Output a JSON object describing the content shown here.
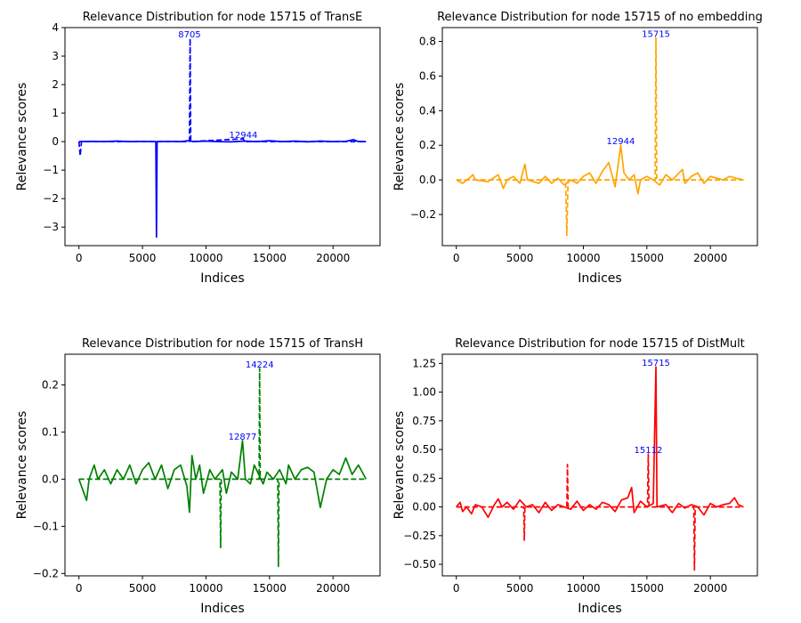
{
  "chart_data": [
    {
      "type": "line",
      "title": "Relevance Distribution for node  15715 of TransE",
      "xlabel": "Indices",
      "ylabel": "Relevance scores",
      "xlim": [
        -1100,
        23700
      ],
      "ylim": [
        -3.65,
        4.0
      ],
      "xticks": [
        0,
        5000,
        10000,
        15000,
        20000
      ],
      "yticks": [
        -3,
        -2,
        -1,
        0,
        1,
        2,
        3,
        4
      ],
      "ytick_labels": [
        "−3",
        "−2",
        "−1",
        "0",
        "1",
        "2",
        "3",
        "4"
      ],
      "color": "#0000ff",
      "series": [
        {
          "style": "solid",
          "points": [
            [
              0,
              0
            ],
            [
              1000,
              0.01
            ],
            [
              2000,
              0
            ],
            [
              3000,
              0.02
            ],
            [
              4000,
              0
            ],
            [
              5000,
              0.01
            ],
            [
              6050,
              0
            ],
            [
              6100,
              -3.35
            ],
            [
              6150,
              0
            ],
            [
              7000,
              0.01
            ],
            [
              8000,
              0
            ],
            [
              8600,
              0.03
            ],
            [
              9000,
              0
            ],
            [
              10000,
              0.02
            ],
            [
              11000,
              0
            ],
            [
              12000,
              -0.01
            ],
            [
              13000,
              0.02
            ],
            [
              14000,
              0
            ],
            [
              15000,
              0.03
            ],
            [
              16000,
              0
            ],
            [
              17000,
              0.02
            ],
            [
              18000,
              -0.01
            ],
            [
              19000,
              0.02
            ],
            [
              20000,
              0
            ],
            [
              21000,
              0.01
            ],
            [
              21600,
              0.07
            ],
            [
              22000,
              0
            ],
            [
              22600,
              0
            ]
          ]
        },
        {
          "style": "dashed",
          "points": [
            [
              0,
              0
            ],
            [
              100,
              -0.5
            ],
            [
              200,
              0
            ],
            [
              2000,
              0
            ],
            [
              8700,
              0
            ],
            [
              8750,
              3.62
            ],
            [
              8800,
              0
            ],
            [
              12944,
              0.1
            ],
            [
              13000,
              0
            ],
            [
              22600,
              0
            ]
          ]
        }
      ],
      "annotations": [
        {
          "text": "8705",
          "x": 8705,
          "y": 3.62
        },
        {
          "text": "12944",
          "x": 12944,
          "y": 0.1
        }
      ]
    },
    {
      "type": "line",
      "title": "Relevance Distribution for node  15715 of no embedding",
      "xlabel": "Indices",
      "ylabel": "Relevance scores",
      "xlim": [
        -1100,
        23700
      ],
      "ylim": [
        -0.38,
        0.88
      ],
      "xticks": [
        0,
        5000,
        10000,
        15000,
        20000
      ],
      "yticks": [
        -0.2,
        0.0,
        0.2,
        0.4,
        0.6,
        0.8
      ],
      "ytick_labels": [
        "−0.2",
        "0.0",
        "0.2",
        "0.4",
        "0.6",
        "0.8"
      ],
      "color": "#ffa500",
      "series": [
        {
          "style": "solid",
          "points": [
            [
              0,
              0
            ],
            [
              500,
              -0.02
            ],
            [
              1000,
              0.01
            ],
            [
              1300,
              0.03
            ],
            [
              1500,
              0
            ],
            [
              2500,
              -0.01
            ],
            [
              3300,
              0.03
            ],
            [
              3700,
              -0.05
            ],
            [
              4000,
              0
            ],
            [
              4500,
              0.02
            ],
            [
              5000,
              -0.02
            ],
            [
              5400,
              0.09
            ],
            [
              5600,
              0
            ],
            [
              6500,
              -0.02
            ],
            [
              7000,
              0.02
            ],
            [
              7500,
              -0.02
            ],
            [
              8000,
              0.01
            ],
            [
              8500,
              -0.03
            ],
            [
              9000,
              0
            ],
            [
              9500,
              -0.02
            ],
            [
              10000,
              0.02
            ],
            [
              10500,
              0.04
            ],
            [
              11000,
              -0.02
            ],
            [
              11500,
              0.05
            ],
            [
              12000,
              0.1
            ],
            [
              12500,
              -0.04
            ],
            [
              12944,
              0.2
            ],
            [
              13200,
              0.04
            ],
            [
              13600,
              0
            ],
            [
              14000,
              0.03
            ],
            [
              14300,
              -0.08
            ],
            [
              14500,
              0
            ],
            [
              15000,
              0.02
            ],
            [
              15500,
              0
            ],
            [
              16000,
              -0.03
            ],
            [
              16500,
              0.03
            ],
            [
              17000,
              0
            ],
            [
              17800,
              0.06
            ],
            [
              18000,
              -0.02
            ],
            [
              18500,
              0.02
            ],
            [
              19000,
              0.04
            ],
            [
              19500,
              -0.02
            ],
            [
              20000,
              0.02
            ],
            [
              20500,
              0.01
            ],
            [
              21000,
              0
            ],
            [
              21500,
              0.02
            ],
            [
              22000,
              0.01
            ],
            [
              22600,
              0
            ]
          ]
        },
        {
          "style": "dashed",
          "points": [
            [
              0,
              0
            ],
            [
              8600,
              0
            ],
            [
              8700,
              -0.32
            ],
            [
              8800,
              0
            ],
            [
              15650,
              0
            ],
            [
              15715,
              0.82
            ],
            [
              15780,
              0
            ],
            [
              22600,
              0
            ]
          ]
        }
      ],
      "annotations": [
        {
          "text": "15715",
          "x": 15715,
          "y": 0.82
        },
        {
          "text": "12944",
          "x": 12944,
          "y": 0.2
        }
      ]
    },
    {
      "type": "line",
      "title": "Relevance Distribution for node  15715 of TransH",
      "xlabel": "Indices",
      "ylabel": "Relevance scores",
      "xlim": [
        -1100,
        23700
      ],
      "ylim": [
        -0.205,
        0.265
      ],
      "xticks": [
        0,
        5000,
        10000,
        15000,
        20000
      ],
      "yticks": [
        -0.2,
        -0.1,
        0.0,
        0.1,
        0.2
      ],
      "ytick_labels": [
        "−0.2",
        "−0.1",
        "0.0",
        "0.1",
        "0.2"
      ],
      "color": "#008000",
      "series": [
        {
          "style": "solid",
          "points": [
            [
              0,
              0
            ],
            [
              400,
              -0.03
            ],
            [
              600,
              -0.045
            ],
            [
              800,
              0
            ],
            [
              1200,
              0.03
            ],
            [
              1500,
              0
            ],
            [
              2000,
              0.02
            ],
            [
              2500,
              -0.01
            ],
            [
              3000,
              0.02
            ],
            [
              3500,
              0
            ],
            [
              4000,
              0.03
            ],
            [
              4500,
              -0.01
            ],
            [
              5000,
              0.02
            ],
            [
              5500,
              0.035
            ],
            [
              6000,
              0
            ],
            [
              6500,
              0.03
            ],
            [
              7000,
              -0.02
            ],
            [
              7500,
              0.02
            ],
            [
              8000,
              0.03
            ],
            [
              8500,
              -0.015
            ],
            [
              8700,
              -0.07
            ],
            [
              8900,
              0.05
            ],
            [
              9200,
              0
            ],
            [
              9500,
              0.03
            ],
            [
              9800,
              -0.03
            ],
            [
              10300,
              0.02
            ],
            [
              10700,
              0
            ],
            [
              11300,
              0.02
            ],
            [
              11600,
              -0.03
            ],
            [
              12000,
              0.015
            ],
            [
              12500,
              0
            ],
            [
              12877,
              0.082
            ],
            [
              13100,
              0
            ],
            [
              13500,
              -0.01
            ],
            [
              13800,
              0.03
            ],
            [
              14500,
              -0.01
            ],
            [
              14800,
              0.015
            ],
            [
              15300,
              0
            ],
            [
              15800,
              0.02
            ],
            [
              16300,
              -0.01
            ],
            [
              16500,
              0.03
            ],
            [
              17000,
              0
            ],
            [
              17500,
              0.02
            ],
            [
              18000,
              0.025
            ],
            [
              18500,
              0.015
            ],
            [
              19000,
              -0.06
            ],
            [
              19500,
              0
            ],
            [
              20000,
              0.02
            ],
            [
              20500,
              0.01
            ],
            [
              21000,
              0.045
            ],
            [
              21500,
              0.01
            ],
            [
              22000,
              0.03
            ],
            [
              22600,
              0
            ]
          ]
        },
        {
          "style": "dashed",
          "points": [
            [
              0,
              0
            ],
            [
              11100,
              0
            ],
            [
              11150,
              -0.145
            ],
            [
              11200,
              0
            ],
            [
              14180,
              0
            ],
            [
              14224,
              0.235
            ],
            [
              14270,
              0
            ],
            [
              15650,
              0
            ],
            [
              15700,
              -0.185
            ],
            [
              15750,
              0
            ],
            [
              22600,
              0
            ]
          ]
        }
      ],
      "annotations": [
        {
          "text": "14224",
          "x": 14224,
          "y": 0.235
        },
        {
          "text": "12877",
          "x": 12877,
          "y": 0.082
        }
      ]
    },
    {
      "type": "line",
      "title": "Relevance Distribution for node  15715 of DistMult",
      "xlabel": "Indices",
      "ylabel": "Relevance scores",
      "xlim": [
        -1100,
        23700
      ],
      "ylim": [
        -0.6,
        1.33
      ],
      "xticks": [
        0,
        5000,
        10000,
        15000,
        20000
      ],
      "yticks": [
        -0.5,
        -0.25,
        0.0,
        0.25,
        0.5,
        0.75,
        1.0,
        1.25
      ],
      "ytick_labels": [
        "−0.50",
        "−0.25",
        "0.00",
        "0.25",
        "0.50",
        "0.75",
        "1.00",
        "1.25"
      ],
      "color": "#ff0000",
      "series": [
        {
          "style": "solid",
          "points": [
            [
              0,
              0
            ],
            [
              300,
              0.04
            ],
            [
              500,
              -0.04
            ],
            [
              800,
              0
            ],
            [
              1200,
              -0.06
            ],
            [
              1500,
              0.02
            ],
            [
              2000,
              0
            ],
            [
              2500,
              -0.09
            ],
            [
              3000,
              0.02
            ],
            [
              3300,
              0.07
            ],
            [
              3600,
              0
            ],
            [
              4000,
              0.04
            ],
            [
              4500,
              -0.02
            ],
            [
              5000,
              0.06
            ],
            [
              5500,
              0
            ],
            [
              6000,
              0.02
            ],
            [
              6500,
              -0.05
            ],
            [
              7000,
              0.04
            ],
            [
              7500,
              -0.03
            ],
            [
              8000,
              0.02
            ],
            [
              8500,
              0
            ],
            [
              9000,
              -0.02
            ],
            [
              9500,
              0.05
            ],
            [
              10000,
              -0.03
            ],
            [
              10500,
              0.02
            ],
            [
              11000,
              -0.02
            ],
            [
              11500,
              0.04
            ],
            [
              12000,
              0.02
            ],
            [
              12500,
              -0.04
            ],
            [
              13000,
              0.06
            ],
            [
              13500,
              0.08
            ],
            [
              13800,
              0.17
            ],
            [
              14000,
              -0.05
            ],
            [
              14500,
              0.05
            ],
            [
              15000,
              0
            ],
            [
              15500,
              0.03
            ],
            [
              15715,
              1.22
            ],
            [
              15800,
              0
            ],
            [
              16500,
              0.02
            ],
            [
              17000,
              -0.05
            ],
            [
              17500,
              0.03
            ],
            [
              18000,
              -0.01
            ],
            [
              18500,
              0.02
            ],
            [
              19000,
              0
            ],
            [
              19500,
              -0.07
            ],
            [
              20000,
              0.03
            ],
            [
              20500,
              0
            ],
            [
              21000,
              0.02
            ],
            [
              21500,
              0.03
            ],
            [
              21900,
              0.08
            ],
            [
              22200,
              0.02
            ],
            [
              22600,
              0
            ]
          ]
        },
        {
          "style": "dashed",
          "points": [
            [
              0,
              0
            ],
            [
              5300,
              0
            ],
            [
              5350,
              -0.29
            ],
            [
              5400,
              0
            ],
            [
              8700,
              0
            ],
            [
              8750,
              0.37
            ],
            [
              8800,
              0
            ],
            [
              15050,
              0
            ],
            [
              15112,
              0.46
            ],
            [
              15170,
              0
            ],
            [
              18700,
              0
            ],
            [
              18750,
              -0.55
            ],
            [
              18800,
              0
            ],
            [
              22600,
              0
            ]
          ]
        }
      ],
      "annotations": [
        {
          "text": "15715",
          "x": 15715,
          "y": 1.22
        },
        {
          "text": "15112",
          "x": 15112,
          "y": 0.46
        }
      ]
    }
  ]
}
